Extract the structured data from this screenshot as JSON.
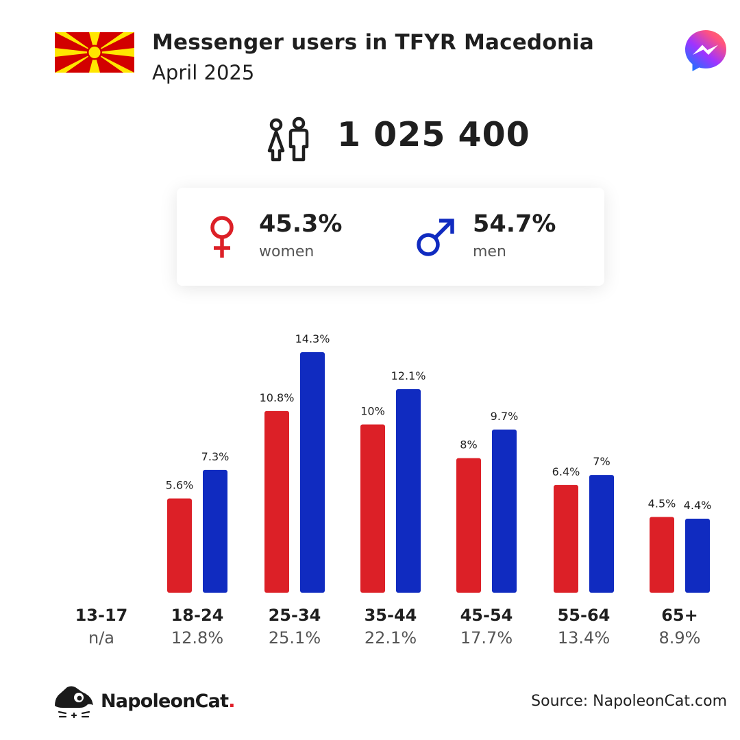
{
  "header": {
    "title": "Messenger users in TFYR Macedonia",
    "subtitle": "April 2025"
  },
  "icons": {
    "flag": "north-macedonia-flag-icon",
    "app": "messenger-logo-icon",
    "people": "people-icon",
    "female": "female-symbol-icon",
    "male": "male-symbol-icon",
    "brand": "napoleoncat-logo-icon"
  },
  "summary": {
    "total": "1 025 400",
    "women": {
      "pct": "45.3%",
      "label": "women"
    },
    "men": {
      "pct": "54.7%",
      "label": "men"
    }
  },
  "colors": {
    "women": "#dc2027",
    "men": "#102bc0",
    "text": "#1f1f1f",
    "muted": "#555555",
    "flag_red": "#d20000",
    "flag_yellow": "#ffe600"
  },
  "chart_data": {
    "type": "bar",
    "categories": [
      "13-17",
      "18-24",
      "25-34",
      "35-44",
      "45-54",
      "55-64",
      "65+"
    ],
    "category_shares": [
      "n/a",
      "12.8%",
      "25.1%",
      "22.1%",
      "17.7%",
      "13.4%",
      "8.9%"
    ],
    "series": [
      {
        "name": "women",
        "values": [
          null,
          5.6,
          10.8,
          10,
          8,
          6.4,
          4.5
        ],
        "labels": [
          "",
          "5.6%",
          "10.8%",
          "10%",
          "8%",
          "6.4%",
          "4.5%"
        ]
      },
      {
        "name": "men",
        "values": [
          null,
          7.3,
          14.3,
          12.1,
          9.7,
          7,
          4.4
        ],
        "labels": [
          "",
          "7.3%",
          "14.3%",
          "12.1%",
          "9.7%",
          "7%",
          "4.4%"
        ]
      }
    ],
    "ylim": [
      0,
      14.3
    ],
    "grid": false
  },
  "footer": {
    "brand_main": "NapoleonCat",
    "brand_dot": ".",
    "source": "Source: NapoleonCat.com"
  }
}
